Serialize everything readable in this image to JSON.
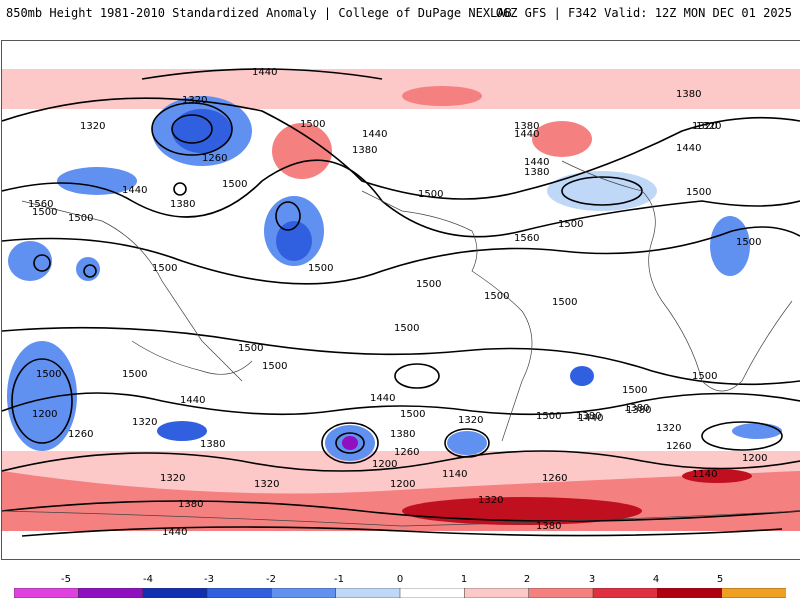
{
  "header": {
    "title_left": "850mb Height 1981-2010 Standardized Anomaly | College of DuPage NEXLAB",
    "title_right": "06Z GFS | F342 Valid: 12Z MON DEC 01 2025"
  },
  "map": {
    "contour_labels": [
      "1440",
      "1320",
      "1320",
      "1320",
      "1140",
      "1260",
      "1440",
      "1380",
      "1560",
      "1500",
      "1500",
      "1500",
      "1500",
      "1440",
      "1380",
      "1500",
      "1380",
      "1440",
      "1440",
      "1380",
      "1500",
      "1560",
      "1500",
      "1500",
      "1380",
      "1320",
      "1440",
      "1500",
      "1500",
      "1500",
      "1500",
      "1500",
      "1500",
      "1500",
      "1500",
      "1500",
      "1500",
      "1500",
      "1440",
      "1500",
      "1440",
      "1380",
      "1200",
      "1320",
      "1260",
      "1380",
      "1320",
      "1380",
      "1380",
      "1260",
      "1200",
      "1320",
      "1140",
      "1200",
      "1260",
      "1320",
      "1380",
      "1500",
      "1500",
      "1440",
      "1380",
      "1320",
      "1260",
      "1200",
      "1320",
      "1380",
      "1440"
    ]
  },
  "colorbar": {
    "ticks": [
      "-5",
      "-4",
      "-3",
      "-2",
      "-1",
      "0",
      "1",
      "2",
      "3",
      "4",
      "5"
    ],
    "colors": [
      "#e040e0",
      "#9010c0",
      "#1030b0",
      "#3060e0",
      "#6090f0",
      "#c0d8f8",
      "#ffffff",
      "#fcc8c8",
      "#f48080",
      "#e03040",
      "#b00010",
      "#f0a020"
    ]
  }
}
